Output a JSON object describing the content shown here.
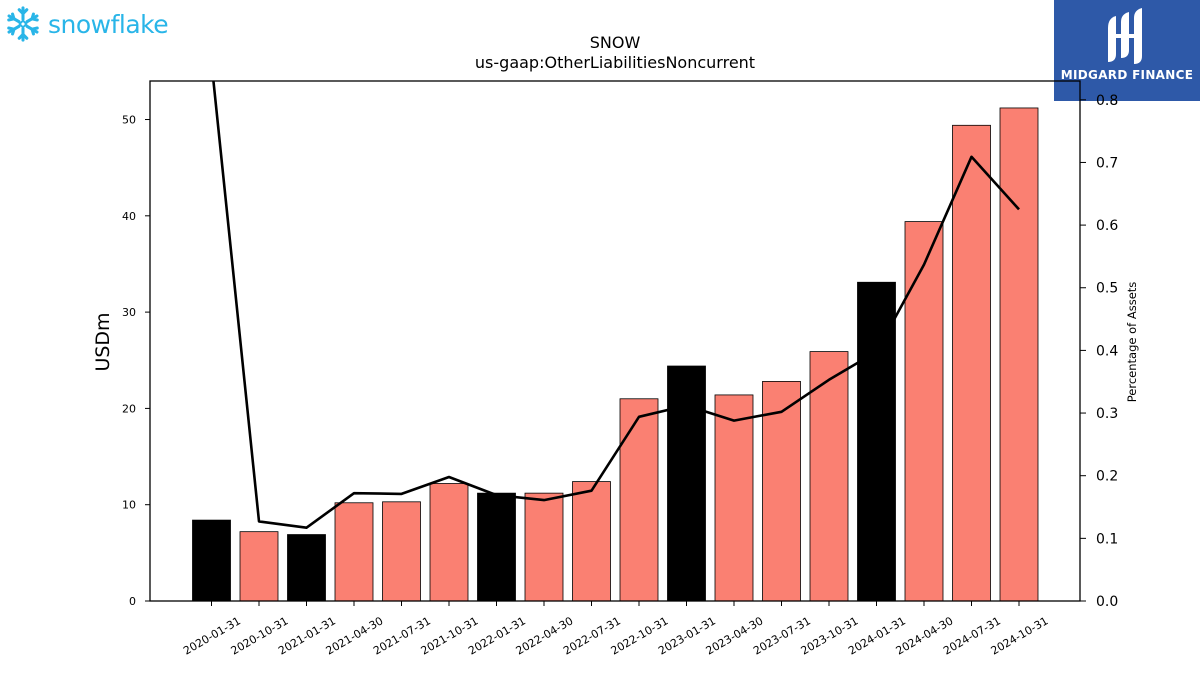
{
  "logos": {
    "left_text": "snowflake",
    "right_text": "MIDGARD FINANCE",
    "left_icon": "snowflake-icon",
    "right_icon": "midgard-mark-icon"
  },
  "colors": {
    "bar_default": "#fa8072",
    "bar_highlight": "#000000",
    "line": "#000000",
    "brand_blue": "#2e59a8",
    "snowflake_blue": "#29b5e8"
  },
  "chart_data": {
    "type": "bar",
    "title": "SNOW",
    "subtitle": "us-gaap:OtherLiabilitiesNoncurrent",
    "ylabel": "USDm",
    "y2label": "Percentage of Assets",
    "ylim": [
      0,
      54
    ],
    "y2lim": [
      0,
      0.83
    ],
    "yticks": [
      0,
      10,
      20,
      30,
      40,
      50
    ],
    "y2ticks": [
      0.0,
      0.1,
      0.2,
      0.3,
      0.4,
      0.5,
      0.6,
      0.7,
      0.8
    ],
    "y2tick_labels": [
      "0.0",
      "0.1",
      "0.2",
      "0.3",
      "0.4",
      "0.5",
      "0.6",
      "0.7",
      "0.8"
    ],
    "grid": false,
    "categories": [
      "2020-01-31",
      "2020-10-31",
      "2021-01-31",
      "2021-04-30",
      "2021-07-31",
      "2021-10-31",
      "2022-01-31",
      "2022-04-30",
      "2022-07-31",
      "2022-10-31",
      "2023-01-31",
      "2023-04-30",
      "2023-07-31",
      "2023-10-31",
      "2024-01-31",
      "2024-04-30",
      "2024-07-31",
      "2024-10-31"
    ],
    "values": [
      8.4,
      7.2,
      6.9,
      10.2,
      10.3,
      12.2,
      11.2,
      11.2,
      12.4,
      21.0,
      24.4,
      21.4,
      22.8,
      25.9,
      33.1,
      39.4,
      49.4,
      51.2
    ],
    "highlight": [
      true,
      false,
      true,
      false,
      false,
      false,
      true,
      false,
      false,
      false,
      true,
      false,
      false,
      false,
      true,
      false,
      false,
      false
    ],
    "line_series": {
      "axis": "right",
      "values": [
        0.86,
        0.127,
        0.117,
        0.172,
        0.171,
        0.198,
        0.169,
        0.161,
        0.176,
        0.294,
        0.312,
        0.288,
        0.302,
        0.353,
        0.398,
        0.537,
        0.709,
        0.625
      ]
    }
  }
}
